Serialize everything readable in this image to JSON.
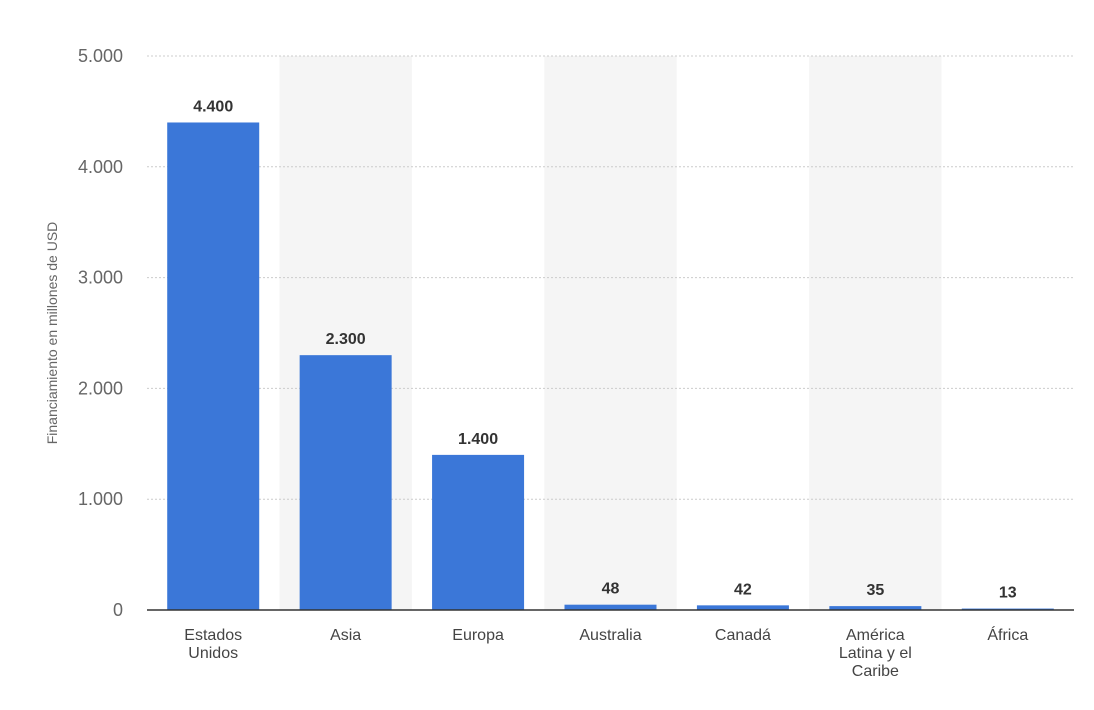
{
  "chart_data": {
    "type": "bar",
    "ylabel": "Financiamiento en millones de USD",
    "xlabel": "",
    "ylim": [
      0,
      5000
    ],
    "yticks": [
      0,
      1000,
      2000,
      3000,
      4000,
      5000
    ],
    "ytick_labels": [
      "0",
      "1.000",
      "2.000",
      "3.000",
      "4.000",
      "5.000"
    ],
    "categories": [
      "Estados Unidos",
      "Asia",
      "Europa",
      "Australia",
      "Canadá",
      "América Latina y el Caribe",
      "África"
    ],
    "category_lines": [
      [
        "Estados",
        "Unidos"
      ],
      [
        "Asia"
      ],
      [
        "Europa"
      ],
      [
        "Australia"
      ],
      [
        "Canadá"
      ],
      [
        "América",
        "Latina y el",
        "Caribe"
      ],
      [
        "África"
      ]
    ],
    "values": [
      4400,
      2300,
      1400,
      48,
      42,
      35,
      13
    ],
    "value_labels": [
      "4.400",
      "2.300",
      "1.400",
      "48",
      "42",
      "35",
      "13"
    ],
    "grid": true,
    "colors": {
      "bar": "#3b77d8",
      "band": "#f5f5f5",
      "grid": "#cccccc",
      "axis": "#333333"
    }
  }
}
